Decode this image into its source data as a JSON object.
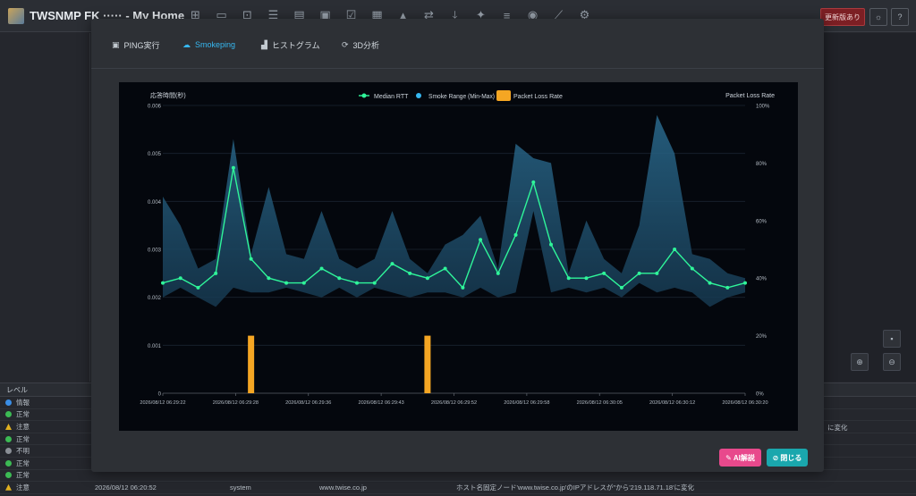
{
  "app": {
    "title": "TWSNMP FK ····· - My Home",
    "update_label": "更新版あり",
    "settings_icon": "gear-icon"
  },
  "toolbar_icons": [
    "network-map-icon",
    "monitor-icon",
    "node-list-icon",
    "task-list-icon",
    "report-icon",
    "dashboard-icon",
    "check-icon",
    "calendar-icon",
    "alert-icon",
    "flow-icon",
    "download-icon",
    "telescope-icon",
    "settings-sliders-icon",
    "brain-icon",
    "line-chart-icon",
    "gear-icon"
  ],
  "modal": {
    "tabs": [
      {
        "label": "PING実行",
        "icon": "ping-icon"
      },
      {
        "label": "Smokeping",
        "icon": "cloud-icon"
      },
      {
        "label": "ヒストグラム",
        "icon": "bar-chart-icon"
      },
      {
        "label": "3D分析",
        "icon": "3d-icon"
      }
    ],
    "active_tab": "Smokeping",
    "ai_button": "AI解説",
    "close_button": "閉じる"
  },
  "log": {
    "header": "レベル",
    "levels": [
      {
        "label": "情報",
        "color": "#3a8ee6"
      },
      {
        "label": "正常",
        "color": "#3cba54"
      },
      {
        "label": "注意",
        "color": "#e0b020"
      },
      {
        "label": "正常",
        "color": "#3cba54"
      },
      {
        "label": "不明",
        "color": "#8a8f96"
      },
      {
        "label": "正常",
        "color": "#3cba54"
      },
      {
        "label": "正常",
        "color": "#3cba54"
      }
    ],
    "last_row": {
      "level": "注意",
      "level_color": "#e0b020",
      "time": "2026/08/12 06:20:52",
      "type": "system",
      "node": "www.twise.co.jp",
      "message": "ホスト名固定ノード'www.twise.co.jp'のIPアドレスが''から'219.118.71.18'に変化"
    },
    "right_note": "に変化"
  },
  "chart_data": {
    "type": "line",
    "title": "",
    "ylabel": "応答時間(秒)",
    "y2label": "Packet Loss Rate",
    "ylim": [
      0,
      0.006
    ],
    "y2lim": [
      0,
      100
    ],
    "yticks": [
      "0",
      "0.001",
      "0.002",
      "0.003",
      "0.004",
      "0.005",
      "0.006"
    ],
    "y2ticks": [
      "0%",
      "20%",
      "40%",
      "60%",
      "80%",
      "100%"
    ],
    "xticks": [
      "2026/08/12 06:29:22",
      "2026/08/12 06:29:28",
      "2026/08/12 06:29:36",
      "2026/08/12 06:29:43",
      "2026/08/12 06:29:52",
      "2026/08/12 06:29:58",
      "2026/08/12 06:30:05",
      "2026/08/12 06:30:12",
      "2026/08/12 06:30:20"
    ],
    "legend": [
      "Median RTT",
      "Smoke Range (Min-Max)",
      "Packet Loss Rate"
    ],
    "colors": {
      "median": "#2ff59a",
      "smoke": "#36b7f0",
      "loss": "#f5a623"
    },
    "median": [
      0.0023,
      0.0024,
      0.0022,
      0.0025,
      0.0047,
      0.0028,
      0.0024,
      0.0023,
      0.0023,
      0.0026,
      0.0024,
      0.0023,
      0.0023,
      0.0027,
      0.0025,
      0.0024,
      0.0026,
      0.0022,
      0.0032,
      0.0025,
      0.0033,
      0.0044,
      0.0031,
      0.0024,
      0.0024,
      0.0025,
      0.0022,
      0.0025,
      0.0025,
      0.003,
      0.0026,
      0.0023,
      0.0022,
      0.0023
    ],
    "smoke_max": [
      0.0041,
      0.0035,
      0.0026,
      0.0028,
      0.0053,
      0.0029,
      0.0043,
      0.0029,
      0.0028,
      0.0038,
      0.0028,
      0.0026,
      0.0028,
      0.0038,
      0.0028,
      0.0025,
      0.0031,
      0.0033,
      0.0037,
      0.0026,
      0.0052,
      0.0049,
      0.0048,
      0.0025,
      0.0036,
      0.0028,
      0.0025,
      0.0035,
      0.0058,
      0.005,
      0.0029,
      0.0028,
      0.0025,
      0.0024
    ],
    "smoke_min": [
      0.002,
      0.0022,
      0.002,
      0.0018,
      0.0022,
      0.0021,
      0.0021,
      0.0022,
      0.0021,
      0.002,
      0.0022,
      0.002,
      0.0022,
      0.0021,
      0.002,
      0.0021,
      0.0021,
      0.002,
      0.0022,
      0.002,
      0.0021,
      0.0038,
      0.0021,
      0.0022,
      0.0021,
      0.0022,
      0.002,
      0.0023,
      0.0021,
      0.0022,
      0.0021,
      0.0018,
      0.002,
      0.0021
    ],
    "loss": [
      0,
      0,
      0,
      0,
      0,
      20,
      0,
      0,
      0,
      0,
      0,
      0,
      0,
      0,
      0,
      20,
      0,
      0,
      0,
      0,
      0,
      0,
      0,
      0,
      0,
      0,
      0,
      0,
      0,
      0,
      0,
      0,
      0,
      0
    ]
  }
}
